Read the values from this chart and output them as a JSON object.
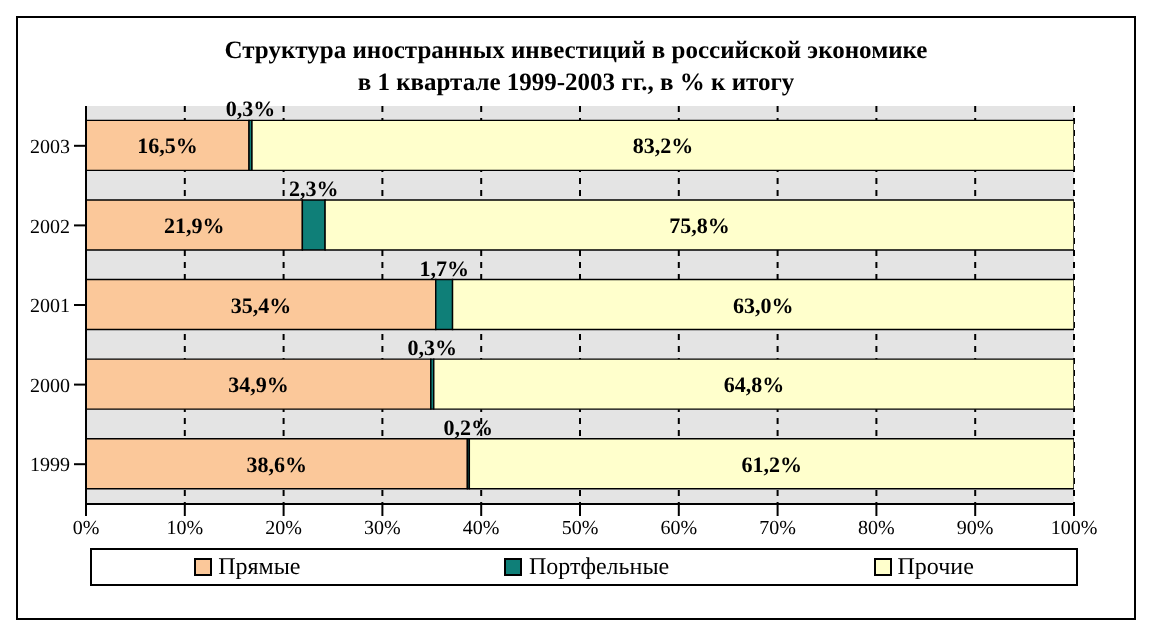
{
  "chart_data": {
    "type": "bar",
    "orientation": "horizontal",
    "stacked": true,
    "title": "Структура иностранных инвестиций в российской экономике\nв 1 квартале 1999-2003 гг., в % к итогу",
    "categories": [
      "2003",
      "2002",
      "2001",
      "2000",
      "1999"
    ],
    "series": [
      {
        "name": "Прямые",
        "color": "#fbc89a",
        "values": [
          16.5,
          21.9,
          35.4,
          34.9,
          38.6
        ],
        "value_labels": [
          "16,5%",
          "21,9%",
          "35,4%",
          "34,9%",
          "38,6%"
        ]
      },
      {
        "name": "Портфельные",
        "color": "#0f7f78",
        "values": [
          0.3,
          2.3,
          1.7,
          0.3,
          0.2
        ],
        "value_labels": [
          "0,3%",
          "2,3%",
          "1,7%",
          "0,3%",
          "0,2%"
        ]
      },
      {
        "name": "Прочие",
        "color": "#ffffcc",
        "values": [
          83.2,
          75.8,
          63.0,
          64.8,
          61.2
        ],
        "value_labels": [
          "83,2%",
          "75,8%",
          "63,0%",
          "64,8%",
          "61,2%"
        ]
      }
    ],
    "xlim": [
      0,
      100
    ],
    "xticks": [
      {
        "value": 0,
        "label": "0%"
      },
      {
        "value": 10,
        "label": "10%"
      },
      {
        "value": 20,
        "label": "20%"
      },
      {
        "value": 30,
        "label": "30%"
      },
      {
        "value": 40,
        "label": "40%"
      },
      {
        "value": 50,
        "label": "50%"
      },
      {
        "value": 60,
        "label": "60%"
      },
      {
        "value": 70,
        "label": "70%"
      },
      {
        "value": 80,
        "label": "80%"
      },
      {
        "value": 90,
        "label": "90%"
      },
      {
        "value": 100,
        "label": "100%"
      }
    ],
    "grid": "x",
    "legend": "bottom"
  }
}
